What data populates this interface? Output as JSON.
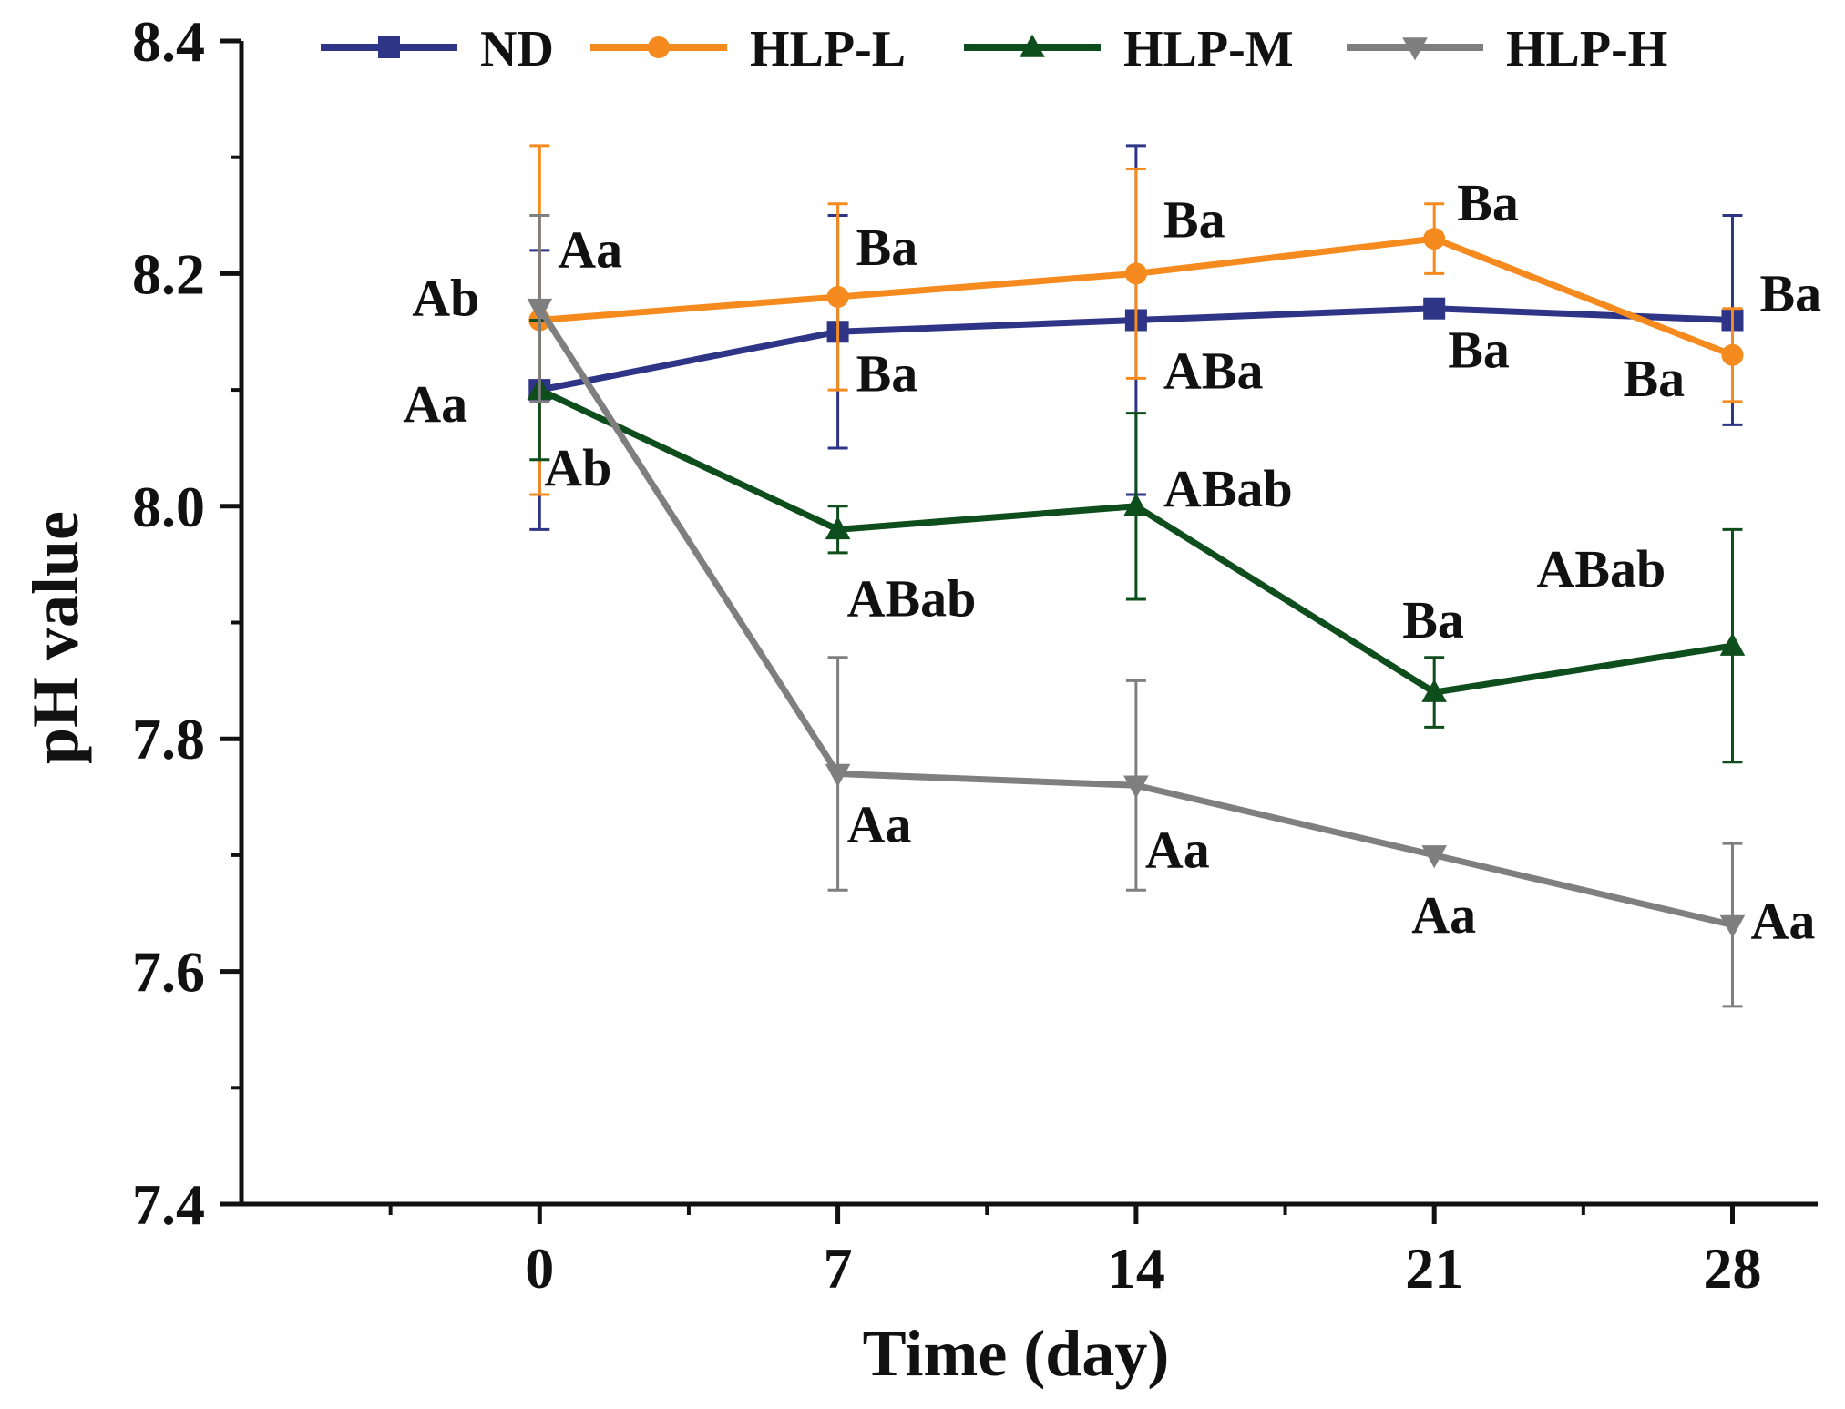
{
  "chart_data": {
    "type": "line",
    "title": "",
    "xlabel": "Time (day)",
    "ylabel": "pH value",
    "x": [
      0,
      7,
      14,
      21,
      28
    ],
    "xlim": [
      -7,
      30
    ],
    "ylim": [
      7.4,
      8.4
    ],
    "x_ticks": [
      "0",
      "7",
      "14",
      "21",
      "28"
    ],
    "y_ticks": [
      "7.4",
      "7.6",
      "7.8",
      "8.0",
      "8.2",
      "8.4"
    ],
    "y_tick_values": [
      7.4,
      7.6,
      7.8,
      8.0,
      8.2,
      8.4
    ],
    "grid": false,
    "legend_position": "top",
    "series": [
      {
        "name": "ND",
        "color": "#2E3586",
        "marker": "square",
        "values": [
          8.1,
          8.15,
          8.16,
          8.17,
          8.16
        ],
        "errors": [
          0.12,
          0.1,
          0.15,
          0.0,
          0.09
        ],
        "annotations": [
          "Aa",
          "Ba",
          "ABa",
          "Ba",
          "Ba"
        ]
      },
      {
        "name": "HLP-L",
        "color": "#F58A1F",
        "marker": "circle",
        "values": [
          8.16,
          8.18,
          8.2,
          8.23,
          8.13
        ],
        "errors": [
          0.15,
          0.08,
          0.09,
          0.03,
          0.04
        ],
        "annotations": [
          "Ab",
          "Ba",
          "Ba",
          "Ba",
          "Ba"
        ]
      },
      {
        "name": "HLP-M",
        "color": "#0E4D1C",
        "marker": "triangle-up",
        "values": [
          8.1,
          7.98,
          8.0,
          7.84,
          7.88
        ],
        "errors": [
          0.06,
          0.02,
          0.08,
          0.03,
          0.1
        ],
        "annotations": [
          "Ab",
          "ABab",
          "ABab",
          "Ba",
          "ABab"
        ]
      },
      {
        "name": "HLP-H",
        "color": "#7F7F7F",
        "marker": "triangle-down",
        "values": [
          8.17,
          7.77,
          7.76,
          7.7,
          7.64
        ],
        "errors": [
          0.08,
          0.1,
          0.09,
          0.0,
          0.07
        ],
        "annotations": [
          "Aa",
          "Aa",
          "Aa",
          "Aa",
          "Aa"
        ]
      }
    ]
  }
}
